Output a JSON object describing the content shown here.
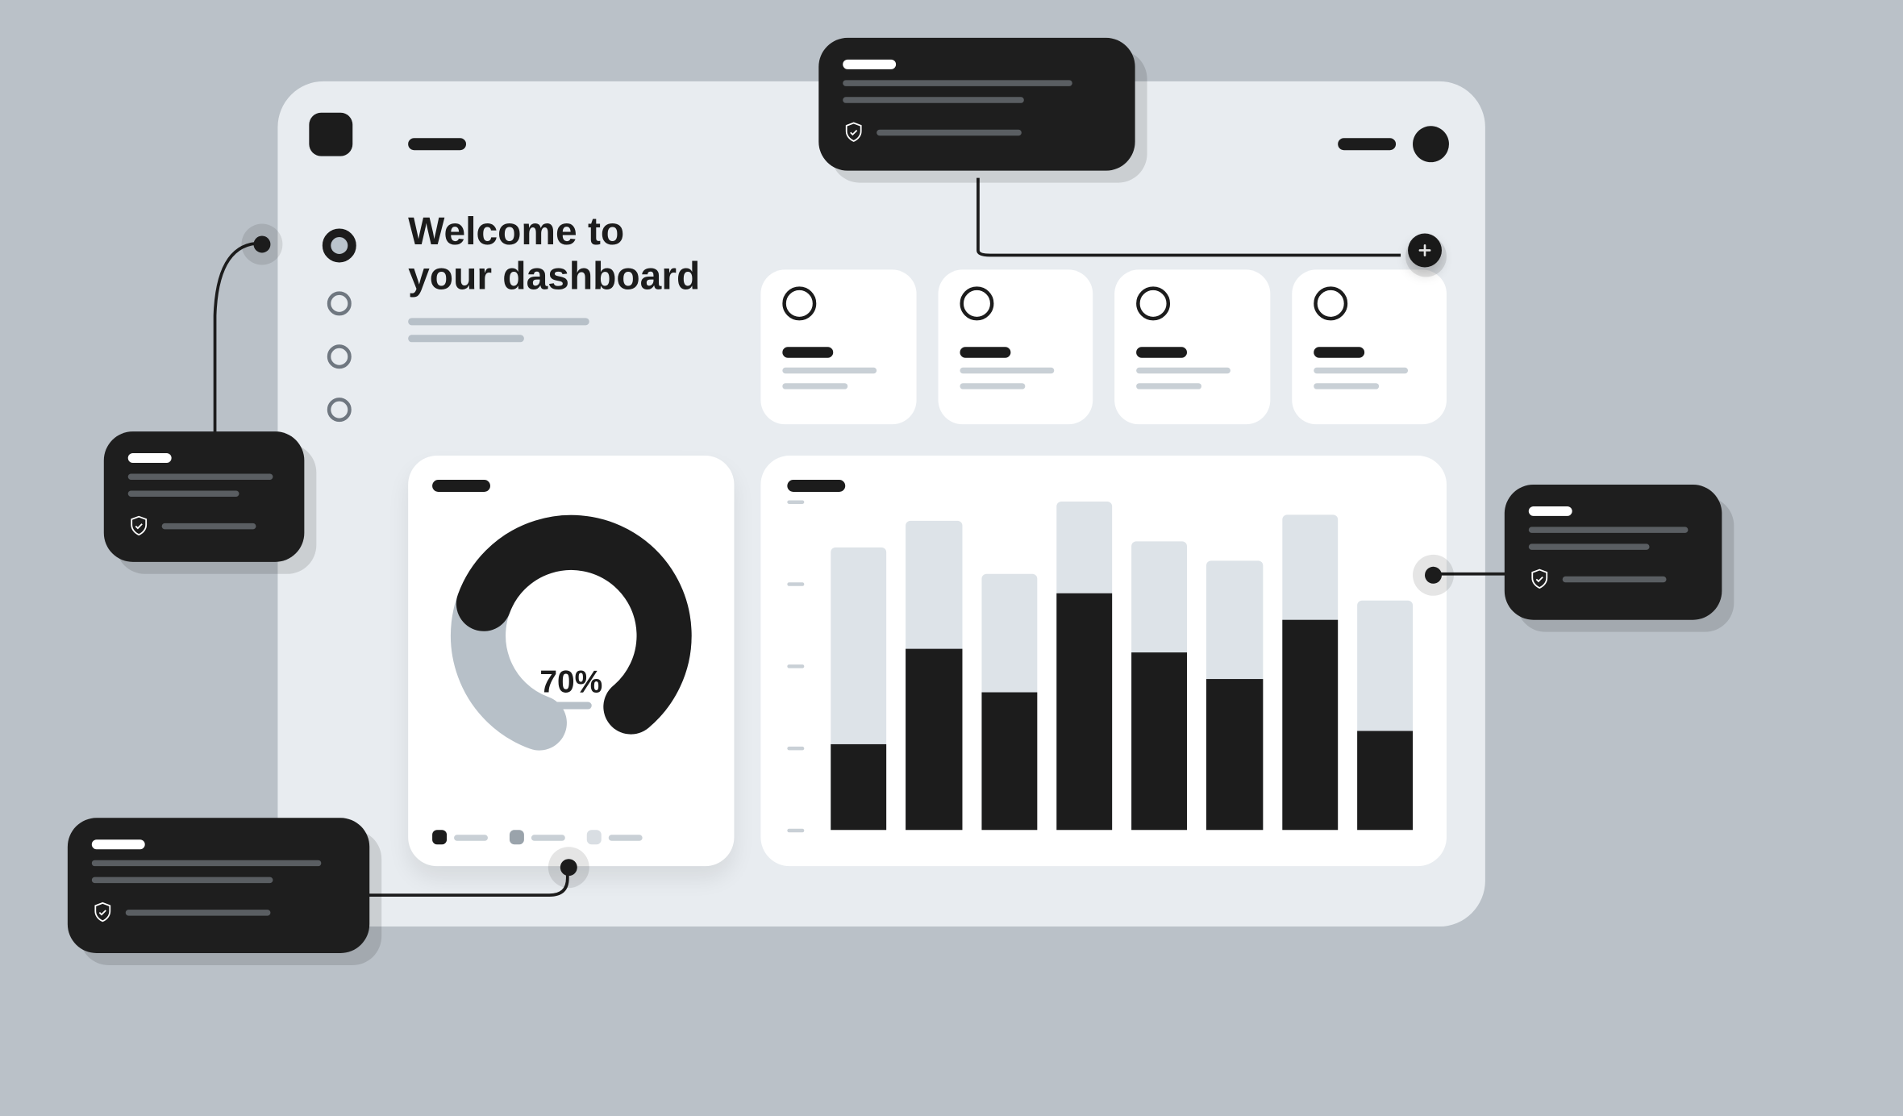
{
  "colors": {
    "page_bg": "#BAC1C8",
    "window_bg": "#E8ECF0",
    "card_bg": "#FFFFFF",
    "text": "#1C1C1C",
    "muted": "#B7C0C8",
    "muted2": "#C9D0D6",
    "callout_bg": "#1E1E1E",
    "callout_line": "#5A5E62",
    "bar_bg": "#DDE3E8",
    "bar_fg": "#1C1C1C"
  },
  "sidebar": {
    "items": [
      {
        "active": true
      },
      {
        "active": false
      },
      {
        "active": false
      },
      {
        "active": false
      }
    ]
  },
  "welcome": {
    "title_line1": "Welcome to",
    "title_line2": "your dashboard"
  },
  "stat_cards": [
    {},
    {},
    {},
    {}
  ],
  "donut_chart": {
    "type": "donut",
    "percent": 70,
    "label": "70%",
    "track_color": "#B7C0C8",
    "value_color": "#1C1C1C",
    "stroke_width": 26,
    "start_angle_deg": 200,
    "sweep_total_deg": 300,
    "legend": [
      {
        "color": "#1C1C1C"
      },
      {
        "color": "#9AA3AB"
      },
      {
        "color": "#D9DEE3"
      }
    ]
  },
  "bar_chart": {
    "type": "bar",
    "max": 100,
    "yticks": [
      0,
      25,
      50,
      75,
      100
    ],
    "bg_color": "#DDE3E8",
    "fg_color": "#1C1C1C",
    "bars": [
      {
        "bg": 86,
        "fg": 26
      },
      {
        "bg": 94,
        "fg": 55
      },
      {
        "bg": 78,
        "fg": 42
      },
      {
        "bg": 100,
        "fg": 72
      },
      {
        "bg": 88,
        "fg": 54
      },
      {
        "bg": 82,
        "fg": 46
      },
      {
        "bg": 96,
        "fg": 64
      },
      {
        "bg": 70,
        "fg": 30
      }
    ]
  },
  "callouts": {
    "top": {},
    "left": {},
    "bottom": {},
    "right": {}
  }
}
